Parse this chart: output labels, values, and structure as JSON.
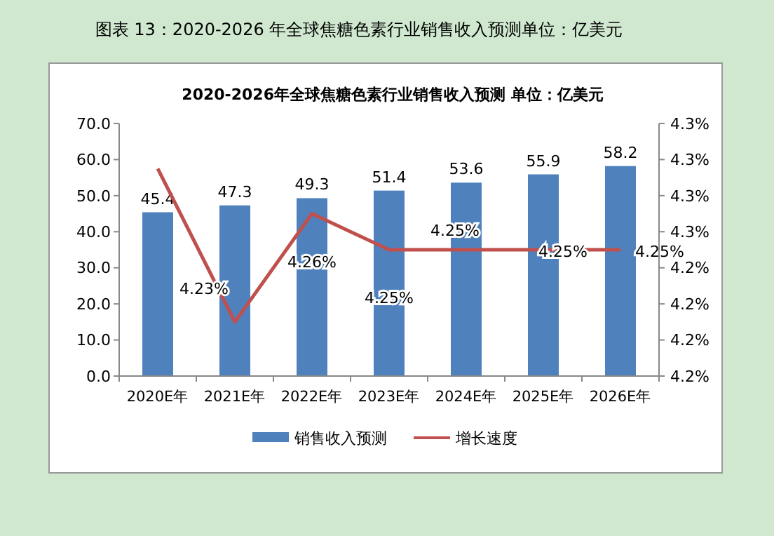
{
  "chart_data": {
    "type": "bar",
    "title": "图表 13：2020-2026 年全球焦糖色素行业销售收入预测单位：亿美元",
    "subtitle": "2020-2026年全球焦糖色素行业销售收入预测 单位：亿美元",
    "categories": [
      "2020E年",
      "2021E年",
      "2022E年",
      "2023E年",
      "2024E年",
      "2025E年",
      "2026E年"
    ],
    "series": [
      {
        "name": "销售收入预测",
        "color": "#4f81bd",
        "values": [
          45.4,
          47.3,
          49.3,
          51.4,
          53.6,
          55.9,
          58.2
        ],
        "value_labels": [
          "45.4",
          "47.3",
          "49.3",
          "51.4",
          "53.6",
          "55.9",
          "58.2"
        ]
      },
      {
        "name": "增长速度",
        "type": "line",
        "axis": "y2",
        "color": "#c0504d",
        "values": [
          4.2725,
          4.23,
          4.26,
          4.25,
          4.25,
          4.25,
          4.25
        ],
        "value_labels": [
          null,
          "4.23%",
          "4.26%",
          "4.25%",
          "4.25%",
          "4.25%",
          "4.25%"
        ]
      }
    ],
    "ylim": [
      0,
      70
    ],
    "yticks": [
      {
        "value": 0,
        "label": "0.0"
      },
      {
        "value": 10,
        "label": "10.0"
      },
      {
        "value": 20,
        "label": "20.0"
      },
      {
        "value": 30,
        "label": "30.0"
      },
      {
        "value": 40,
        "label": "40.0"
      },
      {
        "value": 50,
        "label": "50.0"
      },
      {
        "value": 60,
        "label": "60.0"
      },
      {
        "value": 70,
        "label": "70.0"
      }
    ],
    "y2lim": [
      4.215,
      4.285
    ],
    "y2ticks": [
      {
        "value": 4.215,
        "label": "4.2%"
      },
      {
        "value": 4.225,
        "label": "4.2%"
      },
      {
        "value": 4.235,
        "label": "4.2%"
      },
      {
        "value": 4.245,
        "label": "4.2%"
      },
      {
        "value": 4.255,
        "label": "4.3%"
      },
      {
        "value": 4.265,
        "label": "4.3%"
      },
      {
        "value": 4.275,
        "label": "4.3%"
      },
      {
        "value": 4.285,
        "label": "4.3%"
      }
    ],
    "grid": false,
    "legend": "bottom",
    "marker": "none",
    "line_style": "solid"
  }
}
